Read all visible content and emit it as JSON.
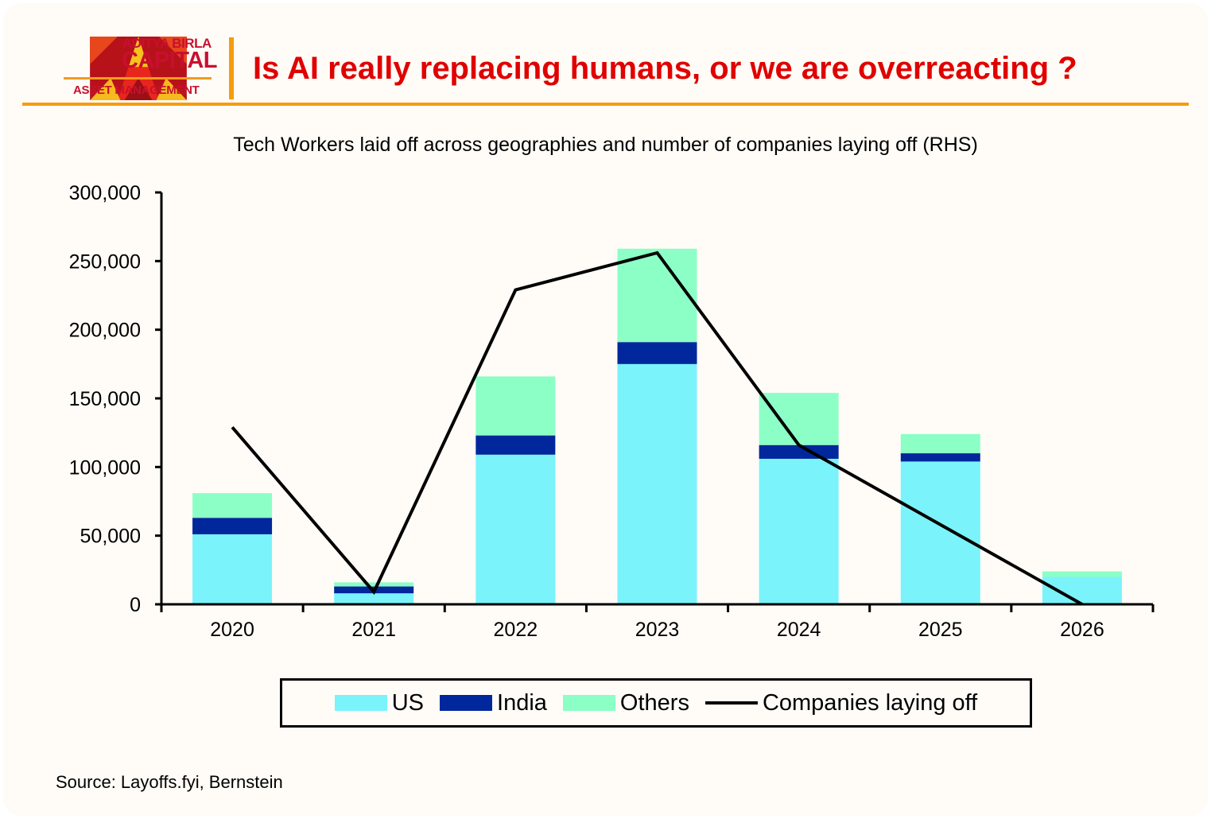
{
  "header": {
    "brand_line1": "ADITYA BIRLA",
    "brand_line2": "CAPITAL",
    "brand_line3": "ASSET MANAGEMENT",
    "title": "Is AI really replacing humans, or we are overreacting ?"
  },
  "colors": {
    "us": "#7af3fb",
    "india": "#00279b",
    "others": "#8cffc6",
    "line": "#000000",
    "title": "#e00000",
    "accent": "#f59c0f"
  },
  "chart_data": {
    "type": "bar",
    "stacked": true,
    "title": "Tech Workers laid off across geographies and number of companies laying off (RHS)",
    "categories": [
      "2020",
      "2021",
      "2022",
      "2023",
      "2024",
      "2025",
      "2026"
    ],
    "ylim": [
      0,
      300000
    ],
    "yticks": [
      "0",
      "50,000",
      "100,000",
      "150,000",
      "200,000",
      "250,000",
      "300,000"
    ],
    "ytick_values": [
      0,
      50000,
      100000,
      150000,
      200000,
      250000,
      300000
    ],
    "series": [
      {
        "name": "US",
        "values": [
          51000,
          8000,
          109000,
          175000,
          106000,
          104000,
          20000
        ]
      },
      {
        "name": "India",
        "values": [
          12000,
          5000,
          14000,
          16000,
          10000,
          6000,
          0
        ]
      },
      {
        "name": "Others",
        "values": [
          18000,
          3000,
          43000,
          68000,
          38000,
          14000,
          4000
        ]
      }
    ],
    "line": {
      "name": "Companies laying off",
      "axis": "right (unlabeled)",
      "values_on_left_scale": [
        129000,
        9000,
        229000,
        256000,
        116000,
        58000,
        0
      ]
    },
    "legend_position": "bottom",
    "grid": false
  },
  "source": "Source: Layoffs.fyi, Bernstein"
}
